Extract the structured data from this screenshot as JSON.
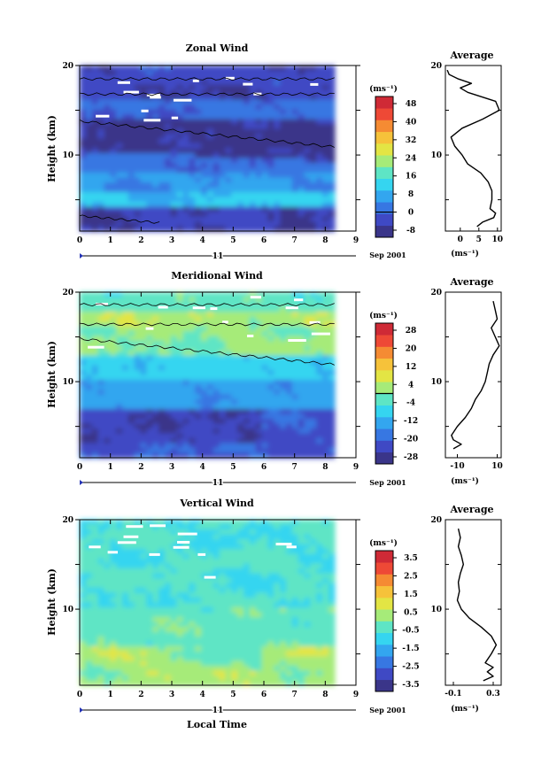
{
  "chart_data": [
    {
      "type": "heatmap",
      "title": "Zonal Wind",
      "ylabel": "Height (km)",
      "y_ticks": [
        "20",
        "10"
      ],
      "x_ticks": [
        "0",
        "1",
        "2",
        "3",
        "4",
        "5",
        "6",
        "7",
        "8",
        "9"
      ],
      "time_marker": "11",
      "date_label": "Sep 2001",
      "xlim": [
        0,
        9
      ],
      "ylim": [
        1.5,
        20
      ],
      "data_extent_x": [
        0,
        8.3
      ],
      "colorbar": {
        "unit": "(ms⁻¹)",
        "ticks": [
          "48",
          "40",
          "32",
          "24",
          "16",
          "8",
          "0",
          "-8"
        ],
        "marked_level": "0"
      },
      "profile": {
        "title": "Average",
        "y_ticks": [
          "20",
          "10"
        ],
        "x_ticks": [
          "0",
          "5",
          "10"
        ],
        "xlim": [
          -4,
          11
        ],
        "unit": "(ms⁻¹)",
        "height_km": [
          2,
          2.5,
          3,
          3.5,
          4,
          5,
          6,
          7,
          8,
          9,
          10,
          11,
          12,
          13,
          14,
          15,
          16,
          17,
          17.5,
          18,
          18.5,
          19,
          19.5
        ],
        "values": [
          4.5,
          6,
          9,
          9.5,
          8,
          8.5,
          8.5,
          7.5,
          5.5,
          2,
          0.5,
          -1.5,
          -2.5,
          0.5,
          6,
          10.5,
          9.5,
          2,
          0,
          3,
          -0.5,
          -3,
          -3.5
        ]
      },
      "field": {
        "low_core_km": [
          3,
          10.5
        ],
        "high_core_km": [
          14.5,
          18
        ],
        "maximum_layer_km": 6.5
      }
    },
    {
      "type": "heatmap",
      "title": "Meridional Wind",
      "ylabel": "Height (km)",
      "y_ticks": [
        "20",
        "10"
      ],
      "x_ticks": [
        "0",
        "1",
        "2",
        "3",
        "4",
        "5",
        "6",
        "7",
        "8",
        "9"
      ],
      "time_marker": "11",
      "date_label": "Sep 2001",
      "xlim": [
        0,
        9
      ],
      "ylim": [
        1.5,
        20
      ],
      "data_extent_x": [
        0,
        8.3
      ],
      "colorbar": {
        "unit": "(ms⁻¹)",
        "ticks": [
          "28",
          "20",
          "12",
          "4",
          "-4",
          "-12",
          "-20",
          "-28"
        ],
        "marked_level": "0"
      },
      "profile": {
        "title": "Average",
        "y_ticks": [
          "20",
          "10"
        ],
        "x_ticks": [
          "-10",
          "10"
        ],
        "xlim": [
          -16,
          12
        ],
        "unit": "(ms⁻¹)",
        "height_km": [
          2.5,
          3,
          3.5,
          4,
          5,
          6,
          7,
          8,
          9,
          10,
          11,
          12,
          13,
          14,
          15,
          16,
          17,
          18,
          19
        ],
        "values": [
          -12,
          -8,
          -12,
          -13,
          -10,
          -6,
          -3,
          -1,
          2,
          4,
          5,
          6,
          8,
          11,
          9,
          7,
          10,
          9,
          8
        ]
      }
    },
    {
      "type": "heatmap",
      "title": "Vertical Wind",
      "ylabel": "Height (km)",
      "y_ticks": [
        "20",
        "10"
      ],
      "x_ticks": [
        "0",
        "1",
        "2",
        "3",
        "4",
        "5",
        "6",
        "7",
        "8",
        "9"
      ],
      "time_marker": "11",
      "date_label": "Sep 2001",
      "xlabel": "Local Time",
      "xlim": [
        0,
        9
      ],
      "ylim": [
        1.5,
        20
      ],
      "data_extent_x": [
        0,
        8.3
      ],
      "colorbar": {
        "unit": "(ms⁻¹)",
        "ticks": [
          "3.5",
          "2.5",
          "1.5",
          "0.5",
          "-0.5",
          "-1.5",
          "-2.5",
          "-3.5"
        ]
      },
      "profile": {
        "title": "Average",
        "y_ticks": [
          "20",
          "10"
        ],
        "x_ticks": [
          "-0.1",
          "0.3"
        ],
        "xlim": [
          -0.18,
          0.38
        ],
        "unit": "(ms⁻¹)",
        "height_km": [
          2,
          2.5,
          3,
          3.5,
          4,
          5,
          6,
          7,
          8,
          9,
          10,
          11,
          12,
          13,
          14,
          15,
          16,
          17,
          18,
          19
        ],
        "values": [
          0.2,
          0.3,
          0.24,
          0.3,
          0.22,
          0.28,
          0.33,
          0.28,
          0.18,
          0.06,
          -0.02,
          -0.06,
          -0.04,
          -0.05,
          -0.03,
          0.0,
          -0.02,
          -0.05,
          -0.03,
          -0.05
        ]
      }
    }
  ]
}
